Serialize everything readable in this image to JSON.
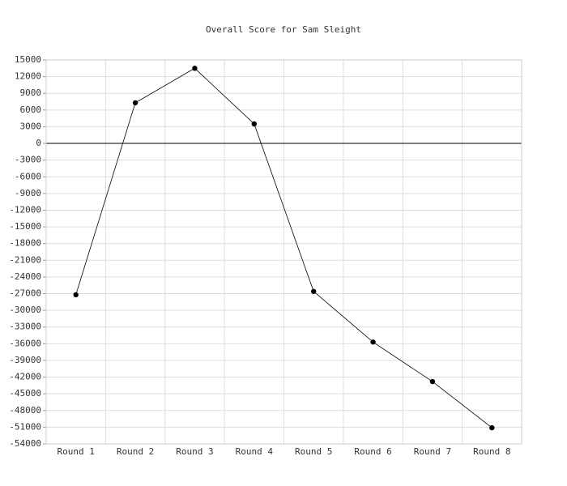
{
  "chart_data": {
    "type": "line",
    "title": "Overall Score for Sam Sleight",
    "categories": [
      "Round 1",
      "Round 2",
      "Round 3",
      "Round 4",
      "Round 5",
      "Round 6",
      "Round 7",
      "Round 8"
    ],
    "series": [
      {
        "color": "#000000",
        "values": [
          -27200,
          7300,
          13500,
          3500,
          -26600,
          -35700,
          -42800,
          -51100
        ]
      }
    ],
    "ylim": [
      -54000,
      15000
    ],
    "yticks": [
      -54000,
      -51000,
      -48000,
      -45000,
      -42000,
      -39000,
      -36000,
      -33000,
      -30000,
      -27000,
      -24000,
      -21000,
      -18000,
      -15000,
      -12000,
      -9000,
      -6000,
      -3000,
      0,
      3000,
      6000,
      9000,
      12000,
      15000
    ],
    "grid": true
  }
}
